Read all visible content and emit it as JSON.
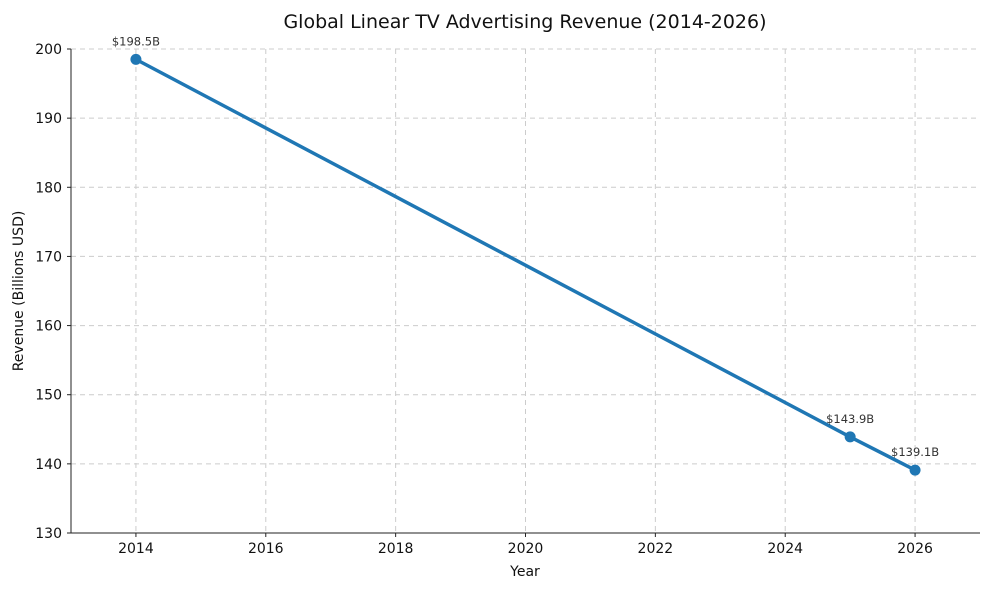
{
  "chart_data": {
    "type": "line",
    "title": "Global Linear TV Advertising Revenue (2014-2026)",
    "xlabel": "Year",
    "ylabel": "Revenue (Billions USD)",
    "xlim": [
      2013,
      2027
    ],
    "ylim": [
      130,
      200
    ],
    "xticks": [
      2014,
      2016,
      2018,
      2020,
      2022,
      2024,
      2026
    ],
    "yticks": [
      130,
      140,
      150,
      160,
      170,
      180,
      190,
      200
    ],
    "grid": true,
    "series": [
      {
        "points": [
          {
            "x": 2014,
            "y": 198.5,
            "label": "$198.5B"
          },
          {
            "x": 2025,
            "y": 143.9,
            "label": "$143.9B"
          },
          {
            "x": 2026,
            "y": 139.1,
            "label": "$139.1B"
          }
        ],
        "color": "#1f77b4"
      }
    ]
  }
}
